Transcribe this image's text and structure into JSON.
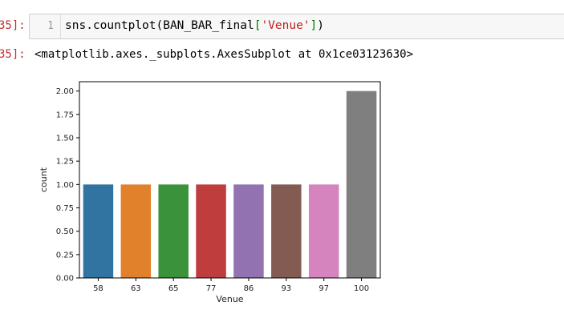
{
  "input_prompt": "35]:",
  "output_prompt": "35]:",
  "cell": {
    "line_number": "1",
    "code": {
      "prefix": "sns.countplot(BAN_BAR_final",
      "open": "[",
      "string": "'Venue'",
      "close": "]",
      "suffix": ")"
    }
  },
  "output_text": "<matplotlib.axes._subplots.AxesSubplot at 0x1ce03123630>",
  "chart_data": {
    "type": "bar",
    "categories": [
      "58",
      "63",
      "65",
      "77",
      "86",
      "93",
      "97",
      "100"
    ],
    "values": [
      1,
      1,
      1,
      1,
      1,
      1,
      1,
      2
    ],
    "colors": [
      "#3274a1",
      "#e1812c",
      "#3a923a",
      "#c03d3e",
      "#9372b2",
      "#845b53",
      "#d684bd",
      "#7f7f7f"
    ],
    "xlabel": "Venue",
    "ylabel": "count",
    "ylim": [
      0,
      2.1
    ],
    "yticks": [
      0.0,
      0.25,
      0.5,
      0.75,
      1.0,
      1.25,
      1.5,
      1.75,
      2.0
    ],
    "ytick_labels": [
      "0.00",
      "0.25",
      "0.50",
      "0.75",
      "1.00",
      "1.25",
      "1.50",
      "1.75",
      "2.00"
    ],
    "grid": false
  }
}
